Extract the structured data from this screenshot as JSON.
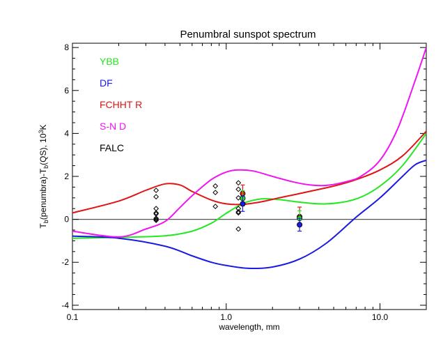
{
  "chart_data": {
    "type": "line",
    "title": "Penumbral sunspot spectrum",
    "xlabel": "wavelength, mm",
    "ylabel_parts": [
      "T",
      "b",
      "(penumbra)-T",
      "b",
      "(QS), 10",
      "3",
      "K"
    ],
    "xscale": "log",
    "xlim": [
      0.1,
      20
    ],
    "ylim": [
      -4.2,
      8.2
    ],
    "xticks": [
      {
        "value": 0.1,
        "label": "0.1"
      },
      {
        "value": 1.0,
        "label": "1.0"
      },
      {
        "value": 10.0,
        "label": "10.0"
      }
    ],
    "yticks": [
      {
        "value": -4,
        "label": "-4"
      },
      {
        "value": -2,
        "label": "-2"
      },
      {
        "value": 0,
        "label": "0"
      },
      {
        "value": 2,
        "label": "2"
      },
      {
        "value": 4,
        "label": "4"
      },
      {
        "value": 6,
        "label": "6"
      },
      {
        "value": 8,
        "label": "8"
      }
    ],
    "zero_line": true,
    "legend_position": "top-left",
    "series": [
      {
        "name": "YBB",
        "color": "#22e822",
        "x": [
          0.1,
          0.2,
          0.4,
          0.6,
          0.8,
          1.0,
          1.3,
          1.7,
          2.2,
          3.0,
          4.5,
          7.0,
          10.0,
          14.0,
          20.0
        ],
        "y": [
          -0.88,
          -0.84,
          -0.77,
          -0.55,
          -0.18,
          0.28,
          0.75,
          0.95,
          0.92,
          0.8,
          0.72,
          0.95,
          1.55,
          2.5,
          4.0
        ]
      },
      {
        "name": "DF",
        "color": "#1a1ae0",
        "x": [
          0.1,
          0.2,
          0.4,
          0.6,
          0.8,
          1.0,
          1.4,
          2.0,
          3.0,
          4.5,
          7.0,
          10.0,
          14.0,
          17.0,
          20.0
        ],
        "y": [
          -0.78,
          -0.88,
          -1.25,
          -1.7,
          -2.0,
          -2.15,
          -2.28,
          -2.22,
          -1.85,
          -1.1,
          0.1,
          1.0,
          2.0,
          2.55,
          2.75
        ]
      },
      {
        "name": "FCHHT R",
        "color": "#e01414",
        "x": [
          0.1,
          0.2,
          0.3,
          0.4,
          0.5,
          0.6,
          0.8,
          1.0,
          1.3,
          1.7,
          2.2,
          3.0,
          5.0,
          7.0,
          10.0,
          14.0,
          20.0
        ],
        "y": [
          0.3,
          0.85,
          1.35,
          1.65,
          1.6,
          1.3,
          0.9,
          0.72,
          0.7,
          0.82,
          1.0,
          1.2,
          1.55,
          1.85,
          2.3,
          2.95,
          4.1
        ]
      },
      {
        "name": "S-N D",
        "color": "#f014f0",
        "x": [
          0.1,
          0.2,
          0.3,
          0.4,
          0.5,
          0.6,
          0.8,
          1.0,
          1.2,
          1.5,
          2.0,
          2.7,
          3.5,
          4.5,
          6.0,
          7.5,
          10.0,
          13.0,
          17.0,
          20.0
        ],
        "y": [
          -0.55,
          -0.82,
          -0.45,
          -0.1,
          0.55,
          1.1,
          1.85,
          2.2,
          2.3,
          2.25,
          2.0,
          1.75,
          1.6,
          1.58,
          1.75,
          2.0,
          2.75,
          4.2,
          6.5,
          8.0
        ]
      }
    ],
    "legend_extra": [
      {
        "name": "FALC",
        "color": "#000000"
      }
    ],
    "falc_points": {
      "color": "#000000",
      "x": [
        0.35,
        0.35,
        0.35,
        0.35,
        0.35,
        0.35,
        0.35,
        0.35,
        0.85,
        0.85,
        0.85,
        1.2,
        1.2,
        1.2,
        1.2,
        1.2,
        1.2,
        1.2
      ],
      "y": [
        1.35,
        1.05,
        0.5,
        0.3,
        0.25,
        0.05,
        0.0,
        -0.05,
        1.55,
        1.25,
        0.6,
        1.7,
        1.4,
        1.0,
        0.5,
        0.35,
        0.3,
        -0.45
      ]
    },
    "model_points": [
      {
        "series": "FCHHT R",
        "color": "#e01414",
        "x": 1.28,
        "y": 1.2,
        "err": 0.4
      },
      {
        "series": "YBB",
        "color": "#22e822",
        "x": 1.28,
        "y": 0.98,
        "err": 0.35
      },
      {
        "series": "DF",
        "color": "#1a1ae0",
        "x": 1.28,
        "y": 0.72,
        "err": 0.35
      },
      {
        "series": "FCHHT R",
        "color": "#e01414",
        "x": 3.0,
        "y": 0.12,
        "err": 0.45
      },
      {
        "series": "YBB",
        "color": "#22e822",
        "x": 3.0,
        "y": 0.05,
        "err": 0.35
      },
      {
        "series": "DF",
        "color": "#1a1ae0",
        "x": 3.0,
        "y": -0.25,
        "err": 0.3
      }
    ]
  }
}
